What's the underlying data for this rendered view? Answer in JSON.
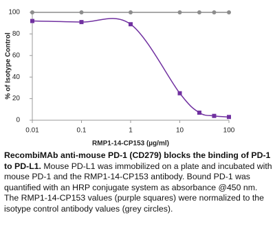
{
  "chart_data": {
    "type": "line",
    "xlabel": "RMP1-14-CP153 (µg/ml)",
    "ylabel": "% of Isotype Control",
    "xscale": "log",
    "xlim": [
      0.01,
      100
    ],
    "xticks": [
      0.01,
      0.1,
      1,
      10,
      100
    ],
    "ylim": [
      0,
      100
    ],
    "yticks": [
      0,
      20,
      40,
      60,
      80,
      100
    ],
    "grid": false,
    "series": [
      {
        "color": "#8c8c8c",
        "marker": "circle",
        "smooth": false,
        "x": [
          0.01,
          0.1,
          1,
          10,
          25,
          50,
          100
        ],
        "values": [
          100,
          100,
          100,
          100,
          100,
          100,
          100
        ]
      },
      {
        "color": "#7030a0",
        "marker": "square",
        "smooth": true,
        "x": [
          0.01,
          0.1,
          1,
          10,
          25,
          50,
          100
        ],
        "values": [
          92,
          91,
          89,
          25,
          7,
          4,
          3
        ]
      }
    ]
  },
  "caption": {
    "bold": "RecombiMAb anti-mouse PD-1 (CD279) blocks the binding of PD-1 to PD-L1.",
    "text": "Mouse PD-L1 was immobilized on a plate and incubated with mouse PD-1 and the RMP1-14-CP153 antibody. Bound PD-1 was quantified with an HRP conjugate system as absorbance @450 nm. The RMP1-14-CP153 values (purple squares) were normalized to the isotype control antibody values (grey circles)."
  }
}
